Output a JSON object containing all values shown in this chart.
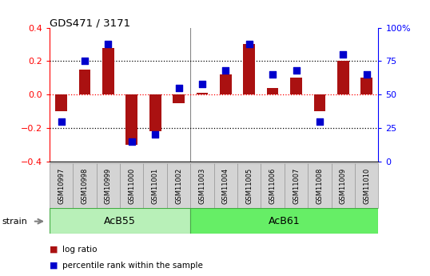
{
  "title": "GDS471 / 3171",
  "samples": [
    "GSM10997",
    "GSM10998",
    "GSM10999",
    "GSM11000",
    "GSM11001",
    "GSM11002",
    "GSM11003",
    "GSM11004",
    "GSM11005",
    "GSM11006",
    "GSM11007",
    "GSM11008",
    "GSM11009",
    "GSM11010"
  ],
  "log_ratio": [
    -0.1,
    0.15,
    0.28,
    -0.3,
    -0.22,
    -0.05,
    0.01,
    0.12,
    0.3,
    0.04,
    0.1,
    -0.1,
    0.2,
    0.1
  ],
  "percentile_rank": [
    30,
    75,
    88,
    15,
    20,
    55,
    58,
    68,
    88,
    65,
    68,
    30,
    80,
    65
  ],
  "strain_groups": [
    {
      "label": "AcB55",
      "start": 0,
      "end": 5
    },
    {
      "label": "AcB61",
      "start": 6,
      "end": 13
    }
  ],
  "strain_label": "strain",
  "ylim_left": [
    -0.4,
    0.4
  ],
  "ylim_right": [
    0,
    100
  ],
  "yticks_left": [
    -0.4,
    -0.2,
    0.0,
    0.2,
    0.4
  ],
  "yticks_right": [
    0,
    25,
    50,
    75,
    100
  ],
  "ytick_labels_right": [
    "0",
    "25",
    "50",
    "75",
    "100%"
  ],
  "hlines_dotted": [
    0.2,
    -0.2
  ],
  "hline_red": 0.0,
  "bar_color": "#aa1111",
  "dot_color": "#0000cc",
  "background_color": "#ffffff",
  "plot_bg_color": "#ffffff",
  "legend_log_ratio": "log ratio",
  "legend_percentile": "percentile rank within the sample",
  "bar_width": 0.5,
  "dot_size": 28,
  "acb55_color": "#b8f0b8",
  "acb61_color": "#66ee66",
  "sample_box_color": "#d4d4d4",
  "sample_box_edge": "#999999"
}
